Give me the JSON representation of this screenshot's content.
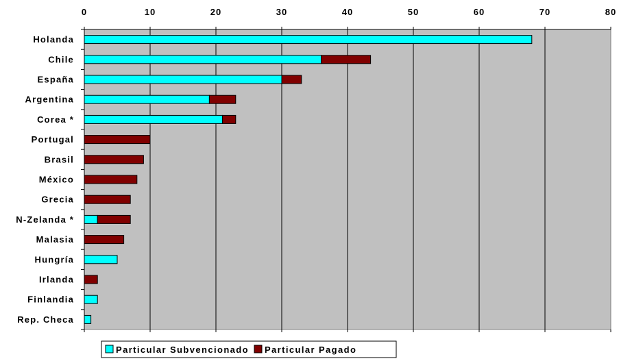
{
  "chart_data": {
    "type": "bar",
    "orientation": "horizontal",
    "stacked": true,
    "categories": [
      "Holanda",
      "Chile",
      "España",
      "Argentina",
      "Corea *",
      "Portugal",
      "Brasil",
      "México",
      "Grecia",
      "N-Zelanda *",
      "Malasia",
      "Hungría",
      "Irlanda",
      "Finlandia",
      "Rep. Checa"
    ],
    "series": [
      {
        "name": "Particular Subvencionado",
        "color": "#00FFFF",
        "values": [
          68,
          36,
          30,
          19,
          21,
          0,
          0,
          0,
          0,
          2,
          0,
          5,
          0,
          2,
          1
        ]
      },
      {
        "name": "Particular Pagado",
        "color": "#800000",
        "values": [
          0,
          7.5,
          3,
          4,
          2,
          10,
          9,
          8,
          7,
          5,
          6,
          0,
          2,
          0,
          0
        ]
      }
    ],
    "xlim": [
      0,
      80
    ],
    "xticks": [
      "0",
      "10",
      "20",
      "30",
      "40",
      "50",
      "60",
      "70",
      "80"
    ],
    "x_axis_position": "top",
    "grid": "vertical",
    "plot_background": "#C0C0C0",
    "legend_position": "bottom-left"
  }
}
